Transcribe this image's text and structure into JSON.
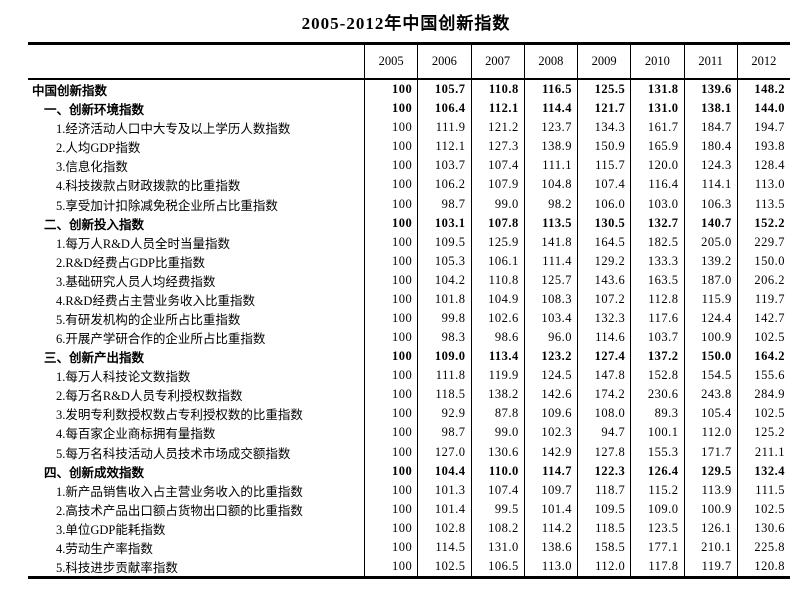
{
  "colors": {
    "background": "#ffffff",
    "text": "#000000",
    "rule": "#000000"
  },
  "chart_data": {
    "type": "table",
    "title": "2005-2012年中国创新指数",
    "year_columns": [
      "2005",
      "2006",
      "2007",
      "2008",
      "2009",
      "2010",
      "2011",
      "2012"
    ],
    "base_value": "100",
    "rows": [
      {
        "label": "中国创新指数",
        "indent": 0,
        "bold": true,
        "values": [
          "100",
          "105.7",
          "110.8",
          "116.5",
          "125.5",
          "131.8",
          "139.6",
          "148.2"
        ]
      },
      {
        "label": "一、创新环境指数",
        "indent": 1,
        "bold": true,
        "values": [
          "100",
          "106.4",
          "112.1",
          "114.4",
          "121.7",
          "131.0",
          "138.1",
          "144.0"
        ]
      },
      {
        "label": "1.经济活动人口中大专及以上学历人数指数",
        "indent": 2,
        "bold": false,
        "values": [
          "100",
          "111.9",
          "121.2",
          "123.7",
          "134.3",
          "161.7",
          "184.7",
          "194.7"
        ]
      },
      {
        "label": "2.人均GDP指数",
        "indent": 2,
        "bold": false,
        "values": [
          "100",
          "112.1",
          "127.3",
          "138.9",
          "150.9",
          "165.9",
          "180.4",
          "193.8"
        ]
      },
      {
        "label": "3.信息化指数",
        "indent": 2,
        "bold": false,
        "values": [
          "100",
          "103.7",
          "107.4",
          "111.1",
          "115.7",
          "120.0",
          "124.3",
          "128.4"
        ]
      },
      {
        "label": "4.科技拨款占财政拨款的比重指数",
        "indent": 2,
        "bold": false,
        "values": [
          "100",
          "106.2",
          "107.9",
          "104.8",
          "107.4",
          "116.4",
          "114.1",
          "113.0"
        ]
      },
      {
        "label": "5.享受加计扣除减免税企业所占比重指数",
        "indent": 2,
        "bold": false,
        "values": [
          "100",
          "98.7",
          "99.0",
          "98.2",
          "106.0",
          "103.0",
          "106.3",
          "113.5"
        ]
      },
      {
        "label": "二、创新投入指数",
        "indent": 1,
        "bold": true,
        "values": [
          "100",
          "103.1",
          "107.8",
          "113.5",
          "130.5",
          "132.7",
          "140.7",
          "152.2"
        ]
      },
      {
        "label": "1.每万人R&D人员全时当量指数",
        "indent": 2,
        "bold": false,
        "values": [
          "100",
          "109.5",
          "125.9",
          "141.8",
          "164.5",
          "182.5",
          "205.0",
          "229.7"
        ]
      },
      {
        "label": "2.R&D经费占GDP比重指数",
        "indent": 2,
        "bold": false,
        "values": [
          "100",
          "105.3",
          "106.1",
          "111.4",
          "129.2",
          "133.3",
          "139.2",
          "150.0"
        ]
      },
      {
        "label": "3.基础研究人员人均经费指数",
        "indent": 2,
        "bold": false,
        "values": [
          "100",
          "104.2",
          "110.8",
          "125.7",
          "143.6",
          "163.5",
          "187.0",
          "206.2"
        ]
      },
      {
        "label": "4.R&D经费占主营业务收入比重指数",
        "indent": 2,
        "bold": false,
        "values": [
          "100",
          "101.8",
          "104.9",
          "108.3",
          "107.2",
          "112.8",
          "115.9",
          "119.7"
        ]
      },
      {
        "label": "5.有研发机构的企业所占比重指数",
        "indent": 2,
        "bold": false,
        "values": [
          "100",
          "99.8",
          "102.6",
          "103.4",
          "132.3",
          "117.6",
          "124.4",
          "142.7"
        ]
      },
      {
        "label": "6.开展产学研合作的企业所占比重指数",
        "indent": 2,
        "bold": false,
        "values": [
          "100",
          "98.3",
          "98.6",
          "96.0",
          "114.6",
          "103.7",
          "100.9",
          "102.5"
        ]
      },
      {
        "label": "三、创新产出指数",
        "indent": 1,
        "bold": true,
        "values": [
          "100",
          "109.0",
          "113.4",
          "123.2",
          "127.4",
          "137.2",
          "150.0",
          "164.2"
        ]
      },
      {
        "label": "1.每万人科技论文数指数",
        "indent": 2,
        "bold": false,
        "values": [
          "100",
          "111.8",
          "119.9",
          "124.5",
          "147.8",
          "152.8",
          "154.5",
          "155.6"
        ]
      },
      {
        "label": "2.每万名R&D人员专利授权数指数",
        "indent": 2,
        "bold": false,
        "values": [
          "100",
          "118.5",
          "138.2",
          "142.6",
          "174.2",
          "230.6",
          "243.8",
          "284.9"
        ]
      },
      {
        "label": "3.发明专利数授权数占专利授权数的比重指数",
        "indent": 2,
        "bold": false,
        "values": [
          "100",
          "92.9",
          "87.8",
          "109.6",
          "108.0",
          "89.3",
          "105.4",
          "102.5"
        ]
      },
      {
        "label": "4.每百家企业商标拥有量指数",
        "indent": 2,
        "bold": false,
        "values": [
          "100",
          "98.7",
          "99.0",
          "102.3",
          "94.7",
          "100.1",
          "112.0",
          "125.2"
        ]
      },
      {
        "label": "5.每万名科技活动人员技术市场成交额指数",
        "indent": 2,
        "bold": false,
        "values": [
          "100",
          "127.0",
          "130.6",
          "142.9",
          "127.8",
          "155.3",
          "171.7",
          "211.1"
        ]
      },
      {
        "label": "四、创新成效指数",
        "indent": 1,
        "bold": true,
        "values": [
          "100",
          "104.4",
          "110.0",
          "114.7",
          "122.3",
          "126.4",
          "129.5",
          "132.4"
        ]
      },
      {
        "label": "1.新产品销售收入占主营业务收入的比重指数",
        "indent": 2,
        "bold": false,
        "values": [
          "100",
          "101.3",
          "107.4",
          "109.7",
          "118.7",
          "115.2",
          "113.9",
          "111.5"
        ]
      },
      {
        "label": "2.高技术产品出口额占货物出口额的比重指数",
        "indent": 2,
        "bold": false,
        "values": [
          "100",
          "101.4",
          "99.5",
          "101.4",
          "109.5",
          "109.0",
          "100.9",
          "102.5"
        ]
      },
      {
        "label": "3.单位GDP能耗指数",
        "indent": 2,
        "bold": false,
        "values": [
          "100",
          "102.8",
          "108.2",
          "114.2",
          "118.5",
          "123.5",
          "126.1",
          "130.6"
        ]
      },
      {
        "label": "4.劳动生产率指数",
        "indent": 2,
        "bold": false,
        "values": [
          "100",
          "114.5",
          "131.0",
          "138.6",
          "158.5",
          "177.1",
          "210.1",
          "225.8"
        ]
      },
      {
        "label": "5.科技进步贡献率指数",
        "indent": 2,
        "bold": false,
        "values": [
          "100",
          "102.5",
          "106.5",
          "113.0",
          "112.0",
          "117.8",
          "119.7",
          "120.8"
        ]
      }
    ]
  }
}
